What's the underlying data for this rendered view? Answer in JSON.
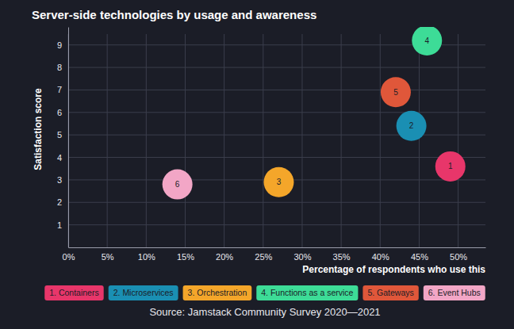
{
  "chart_data": {
    "type": "scatter",
    "title": "Server-side technologies by usage and awareness",
    "x_label": "Percentage of respondents who use this",
    "y_label": "Satisfaction score",
    "source": "Source: Jamstack Community Survey 2020—2021",
    "xlim": [
      0,
      53.5
    ],
    "ylim": [
      0,
      9.8
    ],
    "xticks": [
      {
        "value": 0,
        "label": "0%"
      },
      {
        "value": 5,
        "label": "5%"
      },
      {
        "value": 10,
        "label": "10%"
      },
      {
        "value": 15,
        "label": "15%"
      },
      {
        "value": 20,
        "label": "20%"
      },
      {
        "value": 25,
        "label": "25%"
      },
      {
        "value": 30,
        "label": "30%"
      },
      {
        "value": 35,
        "label": "35%"
      },
      {
        "value": 40,
        "label": "40%"
      },
      {
        "value": 45,
        "label": "45%"
      },
      {
        "value": 50,
        "label": "50%"
      }
    ],
    "yticks": [
      1,
      2,
      3,
      4,
      5,
      6,
      7,
      8,
      9
    ],
    "grid": true,
    "legend": "bottom",
    "marker": "circle",
    "series": [
      {
        "name": "1. Containers",
        "label": "1",
        "color": "#e8366a",
        "x": [
          49
        ],
        "values": [
          3.6
        ]
      },
      {
        "name": "2. Microservices",
        "label": "2",
        "color": "#1a8fb3",
        "x": [
          44
        ],
        "values": [
          5.4
        ]
      },
      {
        "name": "3. Orchestration",
        "label": "3",
        "color": "#f4a62a",
        "x": [
          27
        ],
        "values": [
          2.9
        ]
      },
      {
        "name": "4. Functions as a service",
        "label": "4",
        "color": "#3ddc97",
        "x": [
          46
        ],
        "values": [
          9.2
        ]
      },
      {
        "name": "5. Gateways",
        "label": "5",
        "color": "#e0573a",
        "x": [
          42
        ],
        "values": [
          6.9
        ]
      },
      {
        "name": "6. Event Hubs",
        "label": "6",
        "color": "#f2a6c6",
        "x": [
          14
        ],
        "values": [
          2.8
        ]
      }
    ]
  }
}
